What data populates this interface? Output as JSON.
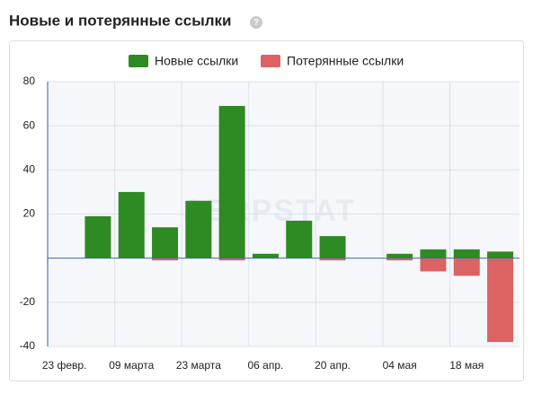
{
  "chart_data": {
    "type": "bar",
    "title": "Новые и потерянные ссылки",
    "watermark": "SERPSTAT",
    "categories": [
      "23 февр.",
      null,
      "09 марта",
      null,
      "23 марта",
      null,
      "06 апр.",
      null,
      "20 апр.",
      null,
      "04 мая",
      null,
      "18 мая",
      null
    ],
    "series": [
      {
        "name": "Новые ссылки",
        "color": "#2e8a22",
        "values": [
          null,
          19,
          30,
          14,
          26,
          69,
          2,
          17,
          10,
          null,
          2,
          4,
          4,
          3
        ]
      },
      {
        "name": "Потерянные ссылки",
        "color": "#db6363",
        "values": [
          null,
          0,
          0,
          -1,
          0,
          -1,
          0,
          0,
          -1,
          null,
          -1,
          -6,
          -8,
          -38
        ]
      }
    ],
    "ylim": [
      -40,
      80
    ],
    "yticks": [
      80,
      60,
      40,
      20,
      -20,
      -40
    ],
    "grid": true
  }
}
